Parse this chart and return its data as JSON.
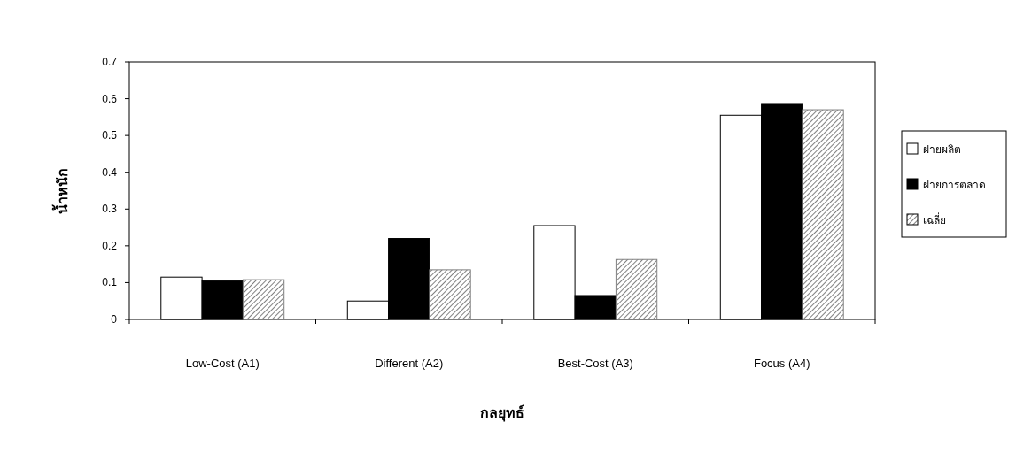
{
  "chart_data": {
    "type": "bar",
    "xlabel": "กลยุทธ์",
    "ylabel": "น้ำหนัก",
    "categories": [
      "Low-Cost (A1)",
      "Different (A2)",
      "Best-Cost (A3)",
      "Focus (A4)"
    ],
    "series": [
      {
        "name": "ฝ่ายผลิต",
        "color": "#ffffff",
        "values": [
          0.115,
          0.05,
          0.255,
          0.555
        ]
      },
      {
        "name": "ฝ่ายการตลาด",
        "color": "#000000",
        "values": [
          0.105,
          0.22,
          0.065,
          0.587
        ]
      },
      {
        "name": "เฉลี่ย",
        "color": "#808080",
        "values": [
          0.108,
          0.135,
          0.163,
          0.57
        ]
      }
    ],
    "ylim": [
      0,
      0.7
    ],
    "yticks": [
      0,
      0.1,
      0.2,
      0.3,
      0.4,
      0.5,
      0.6,
      0.7
    ],
    "grid": false,
    "legend": "right"
  }
}
